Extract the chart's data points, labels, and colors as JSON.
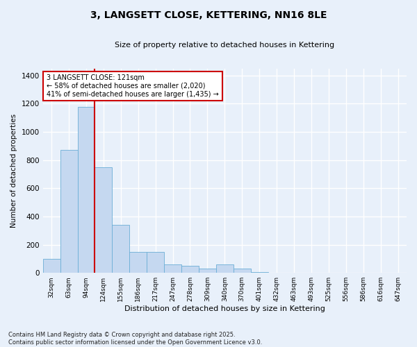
{
  "title": "3, LANGSETT CLOSE, KETTERING, NN16 8LE",
  "subtitle": "Size of property relative to detached houses in Kettering",
  "xlabel": "Distribution of detached houses by size in Kettering",
  "ylabel": "Number of detached properties",
  "categories": [
    "32sqm",
    "63sqm",
    "94sqm",
    "124sqm",
    "155sqm",
    "186sqm",
    "217sqm",
    "247sqm",
    "278sqm",
    "309sqm",
    "340sqm",
    "370sqm",
    "401sqm",
    "432sqm",
    "463sqm",
    "493sqm",
    "525sqm",
    "556sqm",
    "586sqm",
    "616sqm",
    "647sqm"
  ],
  "values": [
    100,
    870,
    1175,
    750,
    340,
    150,
    150,
    60,
    50,
    30,
    60,
    30,
    5,
    2,
    2,
    1,
    1,
    0,
    0,
    0,
    0
  ],
  "bar_color": "#c5d8f0",
  "bar_edge_color": "#6baed6",
  "background_color": "#e8f0fa",
  "grid_color": "#ffffff",
  "vline_color": "#cc0000",
  "vline_pos": 2.5,
  "annotation_text": "3 LANGSETT CLOSE: 121sqm\n← 58% of detached houses are smaller (2,020)\n41% of semi-detached houses are larger (1,435) →",
  "annotation_box_color": "#ffffff",
  "annotation_box_edge": "#cc0000",
  "footer": "Contains HM Land Registry data © Crown copyright and database right 2025.\nContains public sector information licensed under the Open Government Licence v3.0.",
  "ylim": [
    0,
    1450
  ],
  "yticks": [
    0,
    200,
    400,
    600,
    800,
    1000,
    1200,
    1400
  ]
}
